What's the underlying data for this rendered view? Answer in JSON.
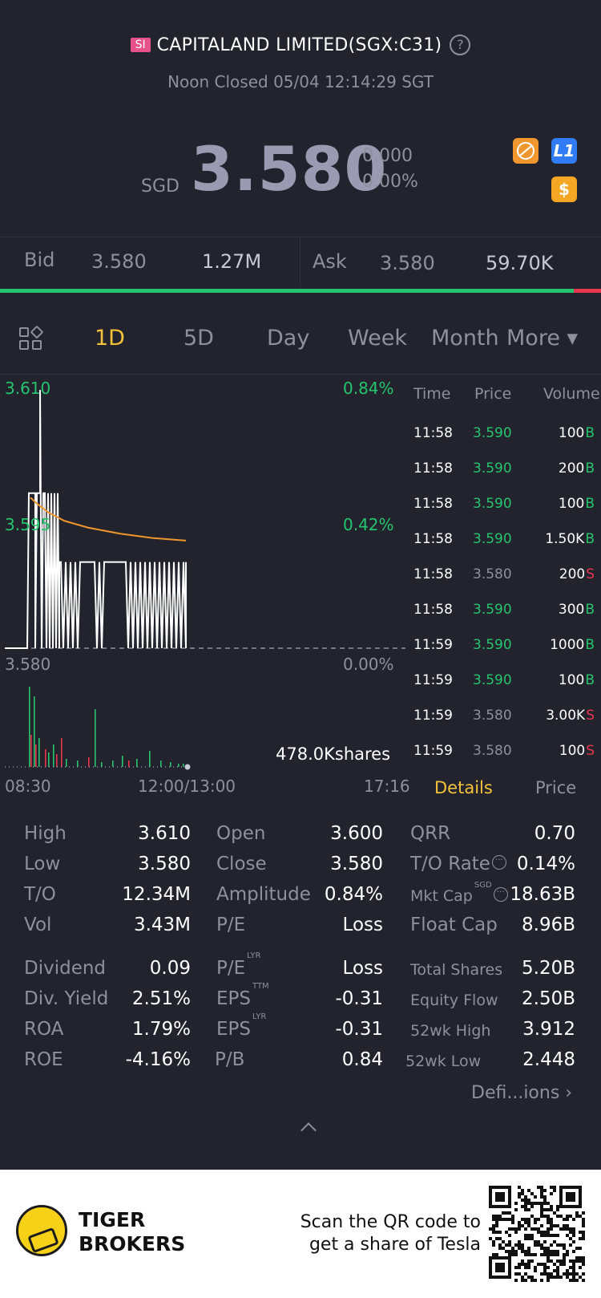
{
  "header": {
    "badge": "SI",
    "title": "CAPITALAND LIMITED(SGX:C31)",
    "help": "?",
    "status": "Noon Closed 05/04 12:14:29 SGT"
  },
  "quote": {
    "currency": "SGD",
    "price": "3.580",
    "change": "0.000",
    "change_pct": "0.00%",
    "level_icon": "L1",
    "dollar_icon": "$"
  },
  "orderbook": {
    "bid_label": "Bid",
    "bid_price": "3.580",
    "bid_volume": "1.27M",
    "ask_label": "Ask",
    "ask_price": "3.580",
    "ask_volume": "59.70K",
    "bid_ratio": 0.955
  },
  "tabs": [
    "1D",
    "5D",
    "Day",
    "Week",
    "Month",
    "More ▾"
  ],
  "active_tab": "1D",
  "chart": {
    "y_high": "3.610",
    "y_mid": "3.595",
    "y_low": "3.580",
    "pct_high": "0.84%",
    "pct_mid": "0.42%",
    "pct_low": "0.00%",
    "volume_label": "478.0Kshares",
    "x_start": "08:30",
    "x_mid": "12:00/13:00",
    "x_end": "17:16"
  },
  "ticks": {
    "headers": [
      "Time",
      "Price",
      "Volume"
    ],
    "rows": [
      {
        "time": "11:58",
        "price": "3.590",
        "volume": "100",
        "side": "B"
      },
      {
        "time": "11:58",
        "price": "3.590",
        "volume": "200",
        "side": "B"
      },
      {
        "time": "11:58",
        "price": "3.590",
        "volume": "100",
        "side": "B"
      },
      {
        "time": "11:58",
        "price": "3.590",
        "volume": "1.50K",
        "side": "B"
      },
      {
        "time": "11:58",
        "price": "3.580",
        "volume": "200",
        "side": "S"
      },
      {
        "time": "11:58",
        "price": "3.590",
        "volume": "300",
        "side": "B"
      },
      {
        "time": "11:59",
        "price": "3.590",
        "volume": "1000",
        "side": "B"
      },
      {
        "time": "11:59",
        "price": "3.590",
        "volume": "100",
        "side": "B"
      },
      {
        "time": "11:59",
        "price": "3.580",
        "volume": "3.00K",
        "side": "S"
      },
      {
        "time": "11:59",
        "price": "3.580",
        "volume": "100",
        "side": "S"
      }
    ],
    "details_tab": "Details",
    "price_tab": "Price"
  },
  "stats": {
    "col1": [
      {
        "label": "High",
        "value": "3.610"
      },
      {
        "label": "Low",
        "value": "3.580"
      },
      {
        "label": "T/O",
        "value": "12.34M"
      },
      {
        "label": "Vol",
        "value": "3.43M"
      },
      {
        "label": "Dividend",
        "value": "0.09"
      },
      {
        "label": "Div. Yield",
        "value": "2.51%"
      },
      {
        "label": "ROA",
        "value": "1.79%"
      },
      {
        "label": "ROE",
        "value": "-4.16%"
      }
    ],
    "col2": [
      {
        "label": "Open",
        "value": "3.600",
        "sup": ""
      },
      {
        "label": "Close",
        "value": "3.580",
        "sup": ""
      },
      {
        "label": "Amplitude",
        "value": "0.84%",
        "sup": ""
      },
      {
        "label": "P/E",
        "value": "Loss",
        "sup": ""
      },
      {
        "label": "P/E",
        "value": "Loss",
        "sup": "LYR"
      },
      {
        "label": "EPS",
        "value": "-0.31",
        "sup": "TTM"
      },
      {
        "label": "EPS",
        "value": "-0.31",
        "sup": "LYR"
      },
      {
        "label": "P/B",
        "value": "0.84",
        "sup": ""
      }
    ],
    "col3": [
      {
        "label": "QRR",
        "value": "0.70",
        "sup": ""
      },
      {
        "label": "T/O Rate",
        "value": "0.14%",
        "sup": ""
      },
      {
        "label": "Mkt Cap",
        "value": "18.63B",
        "sup": "SGD"
      },
      {
        "label": "Float Cap",
        "value": "8.96B",
        "sup": ""
      },
      {
        "label": "Total Shares",
        "value": "5.20B",
        "sup": ""
      },
      {
        "label": "Equity Flow",
        "value": "2.50B",
        "sup": ""
      },
      {
        "label": "52wk High",
        "value": "3.912",
        "sup": ""
      },
      {
        "label": "52wk Low",
        "value": "2.448",
        "sup": ""
      }
    ],
    "definitions": "Defi...ions"
  },
  "footer": {
    "brand_line1": "TIGER",
    "brand_line2": "BROKERS",
    "scan_line1": "Scan the QR code to",
    "scan_line2": "get a share of Tesla"
  },
  "colors": {
    "background": "#22232c",
    "up": "#26c46e",
    "down": "#e8364f",
    "accent": "#f5c33b",
    "avg_line": "#f0962f"
  }
}
